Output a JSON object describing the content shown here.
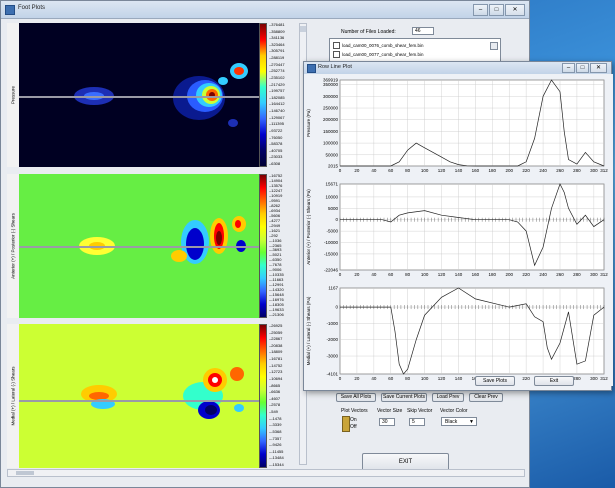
{
  "main": {
    "title": "Foot Plots",
    "window_buttons": {
      "min": "–",
      "max": "□",
      "close": "✕"
    },
    "plots": [
      {
        "ylabel": "Pressure",
        "colorbar": [
          "376481",
          "358809",
          "341136",
          "323464",
          "305791",
          "288119",
          "270447",
          "252774",
          "235102",
          "217429",
          "199757",
          "182085",
          "164412",
          "146740",
          "129067",
          "111395",
          "93722",
          "76050",
          "58378",
          "40705",
          "23033",
          "6308"
        ],
        "colors": [
          "#7a0000",
          "#ff0000",
          "#ff6600",
          "#ffcc00",
          "#ffff00",
          "#99ff33",
          "#33ffcc",
          "#33ccff",
          "#3366ff",
          "#0000cc",
          "#000066",
          "#000033"
        ]
      },
      {
        "ylabel": "Anterior (+) / Posterior (-) Shears",
        "colorbar": [
          "16752",
          "14904",
          "13576",
          "12247",
          "10919",
          "9591",
          "8262",
          "6934",
          "5606",
          "4277",
          "2949",
          "1621",
          "292",
          "-1036",
          "-2365",
          "-3693",
          "-5021",
          "-6350",
          "-7678",
          "-9006",
          "-10335",
          "-11663",
          "-12991",
          "-14320",
          "-15648",
          "-16976",
          "-18305",
          "-19633",
          "-21306"
        ],
        "colors": [
          "#7a0000",
          "#ff0000",
          "#ff6600",
          "#ffcc00",
          "#ffff00",
          "#ccff33",
          "#66ff33",
          "#33ffcc",
          "#33ccff",
          "#3366ff",
          "#0000cc",
          "#000066"
        ]
      },
      {
        "ylabel": "Medial (+) / Lateral (-) Shears",
        "colorbar": [
          "26925",
          "25059",
          "22867",
          "20838",
          "18809",
          "16781",
          "14752",
          "12723",
          "10694",
          "8665",
          "6636",
          "4607",
          "2578",
          "549",
          "-1478",
          "-3339",
          "-5368",
          "-7357",
          "-9426",
          "-11455",
          "-13484",
          "-15344"
        ],
        "colors": [
          "#7a0000",
          "#ff0000",
          "#ff6600",
          "#ffcc00",
          "#ffff00",
          "#ccff33",
          "#66ff33",
          "#33ffcc",
          "#33ccff",
          "#3366ff",
          "#0000cc",
          "#000066"
        ]
      }
    ],
    "files": {
      "label": "Number of Files Loaded:",
      "count": "46",
      "items": [
        "load_cam00_0076_comb_shear_fem.bin",
        "load_cam00_0077_comb_shear_fem.bin"
      ]
    },
    "buttons": {
      "save_all": "Save All Plots",
      "save_current": "Save Current Plots",
      "load_prev": "Load Prev",
      "clear_prev": "Clear Prev",
      "exit": "EXIT"
    },
    "vector_controls": {
      "plot_vectors": "Plot Vectors",
      "vector_size": "Vector Size",
      "skip_vector": "Skip Vector",
      "vector_color": "Vector Color",
      "on": "On",
      "off": "Off",
      "size_value": "30",
      "skip_value": "5",
      "color_value": "Black"
    }
  },
  "row_plot": {
    "title": "Row Line Plot",
    "save_label": "Save Plots",
    "exit_label": "Exit",
    "charts_text": [
      {
        "ylabel": "Pressure (Pa)",
        "yticks": [
          "369919",
          "350000",
          "300000",
          "250000",
          "200000",
          "150000",
          "100000",
          "50000",
          "2015"
        ],
        "xticks": [
          "0",
          "20",
          "40",
          "60",
          "80",
          "100",
          "120",
          "140",
          "160",
          "180",
          "200",
          "220",
          "240",
          "260",
          "280",
          "300",
          "312"
        ]
      },
      {
        "ylabel": "Anterior (+) / Posterior (-) Shears (Pa)",
        "yticks": [
          "15671",
          "10000",
          "5000",
          "0",
          "-5000",
          "-10000",
          "-15000",
          "-22046"
        ],
        "xticks": [
          "0",
          "20",
          "40",
          "60",
          "80",
          "100",
          "120",
          "140",
          "160",
          "180",
          "200",
          "220",
          "240",
          "260",
          "280",
          "300",
          "312"
        ]
      },
      {
        "ylabel": "Medial (+) / Lateral (-) Shears (Pa)",
        "yticks": [
          "1167",
          "0",
          "-1000",
          "-2000",
          "-3000",
          "-4101"
        ],
        "xticks": [
          "0",
          "20",
          "40",
          "60",
          "80",
          "100",
          "120",
          "140",
          "160",
          "180",
          "200",
          "220",
          "240",
          "260",
          "280",
          "300",
          "312"
        ]
      }
    ]
  },
  "chart_data": [
    {
      "type": "line",
      "ylabel": "Pressure (Pa)",
      "xlim": [
        0,
        312
      ],
      "ylim": [
        2015,
        369919
      ],
      "series": [
        {
          "x": [
            0,
            60,
            70,
            80,
            90,
            100,
            110,
            120,
            130,
            140,
            150,
            160,
            200,
            210,
            220,
            230,
            240,
            250,
            260,
            265,
            270,
            280,
            290,
            300,
            312
          ],
          "values": [
            2015,
            2015,
            20000,
            70000,
            100000,
            80000,
            60000,
            40000,
            20000,
            8000,
            3000,
            2015,
            2015,
            2015,
            20000,
            120000,
            300000,
            369919,
            320000,
            150000,
            30000,
            10000,
            60000,
            20000,
            2015
          ]
        }
      ]
    },
    {
      "type": "line",
      "ylabel": "Anterior (+) / Posterior (-) Shears (Pa)",
      "xlim": [
        0,
        312
      ],
      "ylim": [
        -22046,
        15671
      ],
      "series": [
        {
          "x": [
            0,
            50,
            60,
            70,
            80,
            100,
            120,
            140,
            160,
            200,
            210,
            220,
            230,
            240,
            250,
            260,
            265,
            270,
            280,
            290,
            300,
            312
          ],
          "values": [
            0,
            0,
            -1000,
            2000,
            3000,
            4000,
            2000,
            1000,
            0,
            0,
            -1000,
            -5000,
            -20000,
            -12000,
            5000,
            15671,
            12000,
            5000,
            -2000,
            2000,
            -3000,
            0
          ]
        }
      ]
    },
    {
      "type": "line",
      "ylabel": "Medial (+) / Lateral (-) Shears (Pa)",
      "xlim": [
        0,
        312
      ],
      "ylim": [
        -4101,
        1167
      ],
      "series": [
        {
          "x": [
            0,
            60,
            65,
            70,
            75,
            80,
            90,
            100,
            120,
            140,
            160,
            200,
            220,
            230,
            240,
            245,
            250,
            260,
            270,
            280,
            290,
            300,
            312
          ],
          "values": [
            0,
            0,
            -1500,
            -3500,
            -4101,
            -3800,
            -2000,
            -500,
            600,
            1167,
            500,
            0,
            200,
            -600,
            -900,
            -2500,
            -3200,
            -2200,
            -300,
            -3500,
            -3300,
            -500,
            0
          ]
        }
      ]
    }
  ]
}
